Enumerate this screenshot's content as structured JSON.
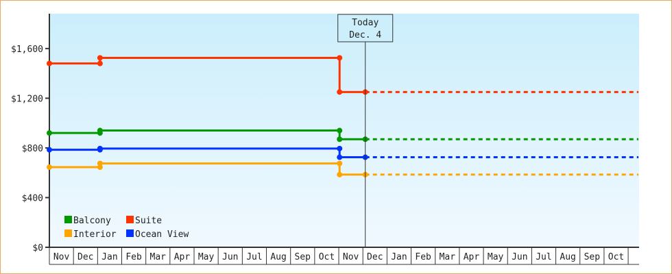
{
  "chart_data": {
    "type": "line",
    "title": "",
    "xlabel": "",
    "ylabel": "",
    "ylim": [
      0,
      1875
    ],
    "yticks": [
      "$0",
      "$400",
      "$800",
      "$1,200",
      "$1,600"
    ],
    "ytick_values": [
      0,
      400,
      800,
      1200,
      1600
    ],
    "xticks": [
      "Nov",
      "Dec",
      "Jan",
      "Feb",
      "Mar",
      "Apr",
      "May",
      "Jun",
      "Jul",
      "Aug",
      "Sep",
      "Oct",
      "Nov",
      "Dec",
      "Jan",
      "Feb",
      "Mar",
      "Apr",
      "May",
      "Jun",
      "Jul",
      "Aug",
      "Sep",
      "Oct"
    ],
    "grid": false,
    "legend": "bottom-left",
    "today_marker": {
      "line1": "Today",
      "line2": "Dec. 4",
      "x": "Dec 4"
    },
    "note": "",
    "series": [
      {
        "name": "Balcony",
        "color": "#009900",
        "points": [
          {
            "x": "Nov 1",
            "y": 920
          },
          {
            "x": "Jan 4",
            "y": 920
          },
          {
            "x": "Jan 4",
            "y": 940
          },
          {
            "x": "Nov 2",
            "y": 940
          },
          {
            "x": "Nov 2",
            "y": 870
          },
          {
            "x": "Dec 4",
            "y": 870
          }
        ],
        "projected": {
          "from": "Dec 4",
          "to": "Oct 31",
          "y": 870
        }
      },
      {
        "name": "Suite",
        "color": "#ff3300",
        "points": [
          {
            "x": "Nov 1",
            "y": 1480
          },
          {
            "x": "Jan 4",
            "y": 1480
          },
          {
            "x": "Jan 4",
            "y": 1525
          },
          {
            "x": "Nov 2",
            "y": 1525
          },
          {
            "x": "Nov 2",
            "y": 1250
          },
          {
            "x": "Dec 4",
            "y": 1250
          }
        ],
        "projected": {
          "from": "Dec 4",
          "to": "Oct 31",
          "y": 1250
        }
      },
      {
        "name": "Interior",
        "color": "#ffa500",
        "points": [
          {
            "x": "Nov 1",
            "y": 645
          },
          {
            "x": "Jan 4",
            "y": 645
          },
          {
            "x": "Jan 4",
            "y": 675
          },
          {
            "x": "Nov 2",
            "y": 675
          },
          {
            "x": "Nov 2",
            "y": 585
          },
          {
            "x": "Dec 4",
            "y": 585
          }
        ],
        "projected": {
          "from": "Dec 4",
          "to": "Oct 31",
          "y": 585
        }
      },
      {
        "name": "Ocean View",
        "color": "#0033ff",
        "points": [
          {
            "x": "Nov 1",
            "y": 785
          },
          {
            "x": "Jan 4",
            "y": 785
          },
          {
            "x": "Jan 4",
            "y": 795
          },
          {
            "x": "Nov 2",
            "y": 795
          },
          {
            "x": "Nov 2",
            "y": 725
          },
          {
            "x": "Dec 4",
            "y": 725
          }
        ],
        "projected": {
          "from": "Dec 4",
          "to": "Oct 31",
          "y": 725
        }
      }
    ]
  }
}
